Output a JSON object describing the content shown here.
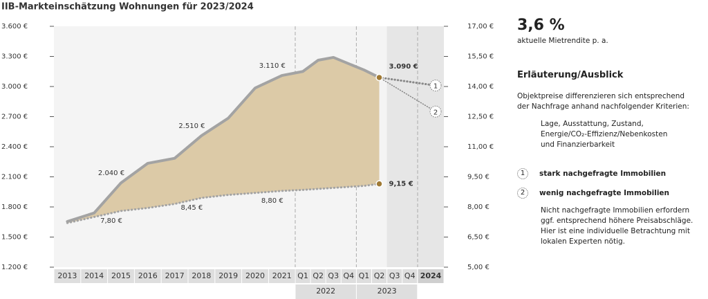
{
  "chart_data": {
    "type": "line",
    "title": "IIB-Markteinschätzung Wohnungen für 2023/2024",
    "categories": [
      "2013",
      "2014",
      "2015",
      "2016",
      "2017",
      "2018",
      "2019",
      "2020",
      "2021",
      "Q1",
      "Q2",
      "Q3",
      "Q4",
      "Q1",
      "Q2",
      "Q3",
      "Q4",
      "2024"
    ],
    "groups": [
      "2022",
      "2023"
    ],
    "series": [
      {
        "color": "#a3a3a3",
        "values": [
          1655,
          1740,
          2040,
          2235,
          2285,
          2510,
          2685,
          2985,
          3110,
          3150,
          3262,
          3290,
          3227,
          3165,
          3090,
          null,
          null,
          null
        ],
        "value_labels": [
          null,
          null,
          "2.040 €",
          null,
          null,
          "2.510 €",
          null,
          null,
          "3.110 €",
          null,
          null,
          null,
          null,
          null,
          "3.090 €",
          null,
          null,
          null
        ]
      },
      {
        "color": "#a3a3a3",
        "axis": "y2",
        "values": [
          7.2,
          7.5,
          7.8,
          7.95,
          8.15,
          8.45,
          8.6,
          8.7,
          8.8,
          8.85,
          8.9,
          8.95,
          9.0,
          9.05,
          9.15,
          null,
          null,
          null
        ],
        "value_labels": [
          null,
          null,
          "7,80 €",
          null,
          null,
          "8,45 €",
          null,
          null,
          "8,80 €",
          null,
          null,
          null,
          null,
          null,
          "9,15 €",
          null,
          null,
          null
        ]
      }
    ],
    "forecast": {
      "labels": [
        "1",
        "2"
      ],
      "values": [
        3010,
        2750
      ]
    },
    "ylim": [
      1200,
      3600
    ],
    "yticks": [
      {
        "value": 1200,
        "label": "1.200 €"
      },
      {
        "value": 1500,
        "label": "1.500 €"
      },
      {
        "value": 1800,
        "label": "1.800 €"
      },
      {
        "value": 2100,
        "label": "2.100 €"
      },
      {
        "value": 2400,
        "label": "2.400 €"
      },
      {
        "value": 2700,
        "label": "2.700 €"
      },
      {
        "value": 3000,
        "label": "3.000 €"
      },
      {
        "value": 3300,
        "label": "3.300 €"
      },
      {
        "value": 3600,
        "label": "3.600 €"
      }
    ],
    "y2lim": [
      5,
      17
    ],
    "y2ticks": [
      {
        "value": 5,
        "label": "5,00 €"
      },
      {
        "value": 6.5,
        "label": "6,50 €"
      },
      {
        "value": 8,
        "label": "8,00 €"
      },
      {
        "value": 9.5,
        "label": "9,50 €"
      },
      {
        "value": 11,
        "label": "11,00 €"
      },
      {
        "value": 12.5,
        "label": "12,50 €"
      },
      {
        "value": 14,
        "label": "14,00 €"
      },
      {
        "value": 15.5,
        "label": "15,50 €"
      },
      {
        "value": 17,
        "label": "17,00 €"
      }
    ],
    "area_color": "#dccaa7",
    "highlight_color": "#a07a35"
  },
  "panel": {
    "kpi": "3,6 %",
    "kpi_label": "aktuelle Mietrendite p. a.",
    "heading": "Erläuterung/Ausblick",
    "intro": "Objektpreise differenzieren sich entsprechend der Nachfrage anhand nachfolgender Kriterien:",
    "criteria": [
      "Lage, Ausstattung, Zustand,",
      "Energie/CO₂-Effizienz/Nebenkosten",
      "und Finanzierbarkeit"
    ],
    "legend": [
      {
        "label": "1",
        "text": "stark nachgefragte Immobilien"
      },
      {
        "label": "2",
        "text": "wenig nachgefragte Immobilien"
      }
    ],
    "note": "Nicht nachgefragte Immobilien erfordern ggf. entsprechend höhere Preisabschläge. Hier ist eine individuelle Betrachtung mit lokalen Experten nötig."
  }
}
